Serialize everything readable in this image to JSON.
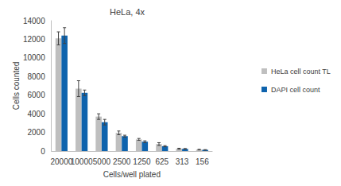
{
  "chart_data": {
    "type": "bar",
    "title": "HeLa, 4x",
    "x_label": "Cells/well plated",
    "y_label": "Cells counted",
    "categories": [
      "20000",
      "10000",
      "5000",
      "2500",
      "1250",
      "625",
      "313",
      "156"
    ],
    "series": [
      {
        "name": "HeLa cell count TL",
        "color": "#bfbfbf",
        "values": [
          12100,
          6700,
          3700,
          1950,
          1250,
          750,
          250,
          150
        ],
        "errors": [
          700,
          850,
          300,
          200,
          100,
          150,
          50,
          30
        ]
      },
      {
        "name": "DAPI cell count",
        "color": "#0e63ad",
        "values": [
          12400,
          6250,
          3100,
          1600,
          1000,
          520,
          230,
          120
        ],
        "errors": [
          850,
          300,
          300,
          100,
          100,
          60,
          40,
          30
        ]
      }
    ],
    "ylim": [
      0,
      14000
    ],
    "yticks": [
      0,
      2000,
      4000,
      6000,
      8000,
      10000,
      12000,
      14000
    ],
    "grid": false,
    "legend": "right"
  }
}
